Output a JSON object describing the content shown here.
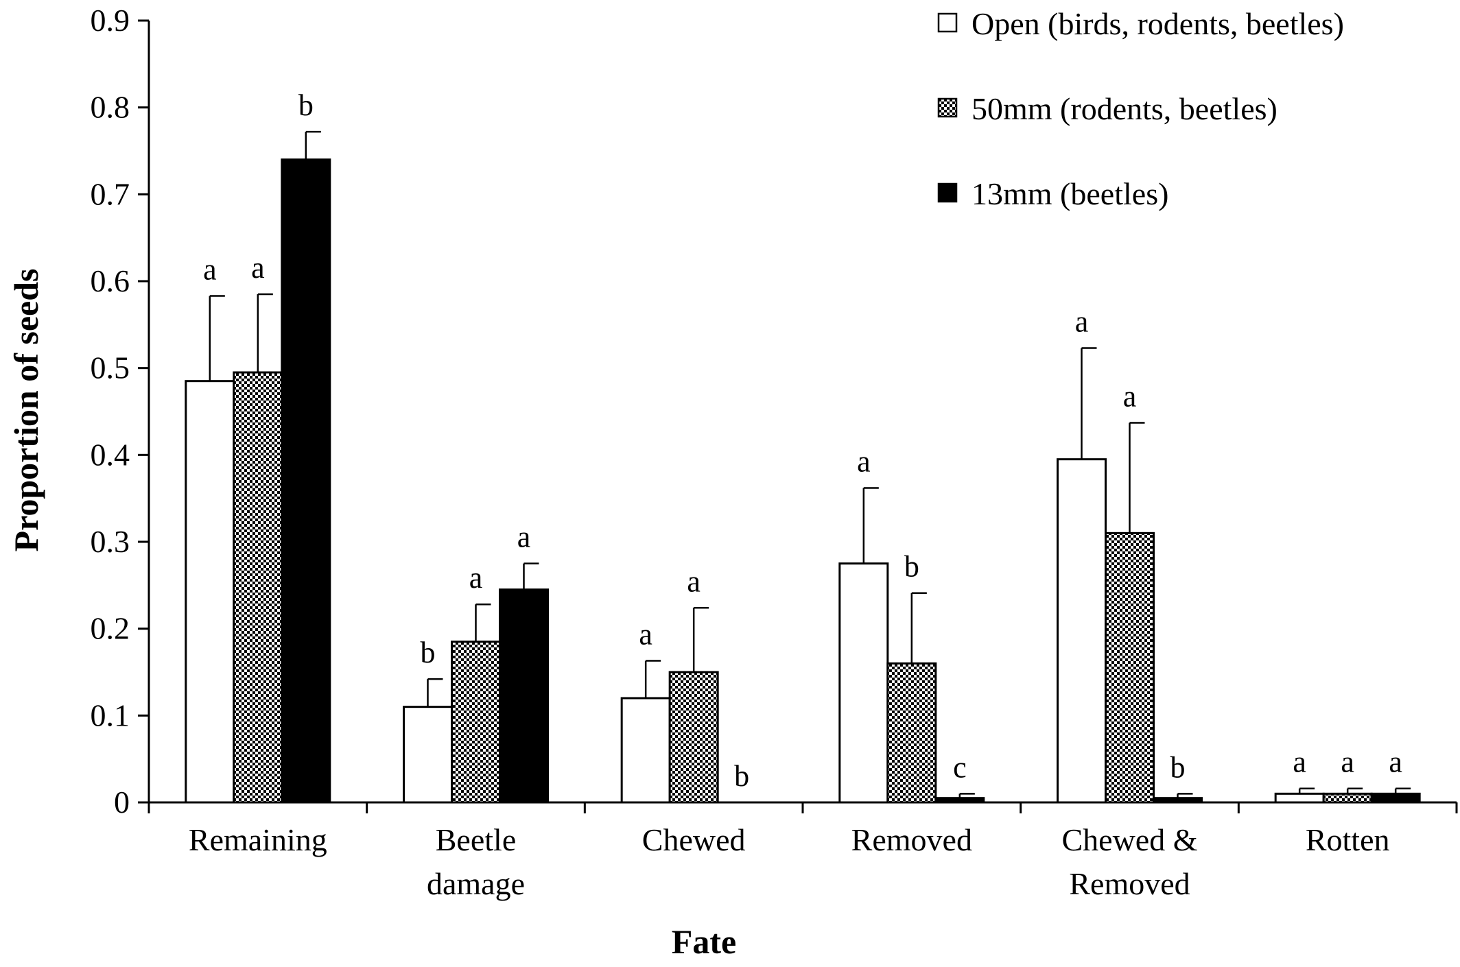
{
  "chart_data": {
    "type": "bar",
    "xlabel": "Fate",
    "ylabel": "Proportion of seeds",
    "ylim": [
      0,
      0.9
    ],
    "yticks": [
      "0",
      "0.1",
      "0.2",
      "0.3",
      "0.4",
      "0.5",
      "0.6",
      "0.7",
      "0.8",
      "0.9"
    ],
    "grid": false,
    "legend_position": "top-right",
    "categories": [
      [
        "Remaining"
      ],
      [
        "Beetle",
        "damage"
      ],
      [
        "Chewed"
      ],
      [
        "Removed"
      ],
      [
        "Chewed &",
        "Removed"
      ],
      [
        "Rotten"
      ]
    ],
    "series": [
      {
        "name": "Open (birds, rodents, beetles)",
        "fill": "open",
        "values": [
          0.485,
          0.11,
          0.12,
          0.275,
          0.395,
          0.01
        ],
        "errors": [
          0.098,
          0.032,
          0.043,
          0.087,
          0.128,
          0.006
        ],
        "letters": [
          "a",
          "b",
          "a",
          "a",
          "a",
          "a"
        ]
      },
      {
        "name": "50mm (rodents, beetles)",
        "fill": "checker",
        "values": [
          0.495,
          0.185,
          0.15,
          0.16,
          0.31,
          0.01
        ],
        "errors": [
          0.09,
          0.043,
          0.074,
          0.081,
          0.127,
          0.006
        ],
        "letters": [
          "a",
          "a",
          "a",
          "b",
          "a",
          "a"
        ]
      },
      {
        "name": "13mm (beetles)",
        "fill": "solid",
        "values": [
          0.74,
          0.245,
          0.0,
          0.005,
          0.005,
          0.01
        ],
        "errors": [
          0.032,
          0.03,
          0.0,
          0.005,
          0.005,
          0.006
        ],
        "letters": [
          "b",
          "a",
          "b",
          "c",
          "b",
          "a"
        ]
      }
    ]
  }
}
